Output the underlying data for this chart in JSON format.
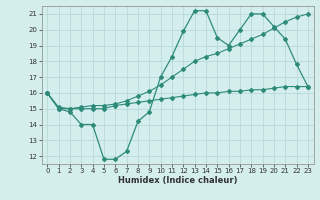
{
  "xlabel": "Humidex (Indice chaleur)",
  "ylabel": "",
  "bg_color": "#d4eeee",
  "line_color": "#2e8b7a",
  "grid_color": "#b8d8d8",
  "xlim": [
    -0.5,
    23.5
  ],
  "ylim": [
    11.5,
    21.5
  ],
  "xticks": [
    0,
    1,
    2,
    3,
    4,
    5,
    6,
    7,
    8,
    9,
    10,
    11,
    12,
    13,
    14,
    15,
    16,
    17,
    18,
    19,
    20,
    21,
    22,
    23
  ],
  "yticks": [
    12,
    13,
    14,
    15,
    16,
    17,
    18,
    19,
    20,
    21
  ],
  "line1_x": [
    0,
    1,
    2,
    3,
    4,
    5,
    6,
    7,
    8,
    9,
    10,
    11,
    12,
    13,
    14,
    15,
    16,
    17,
    18,
    19,
    20,
    21,
    22,
    23
  ],
  "line1_y": [
    16.0,
    15.0,
    14.8,
    14.0,
    14.0,
    11.8,
    11.8,
    12.3,
    14.2,
    14.8,
    17.0,
    18.3,
    19.9,
    21.2,
    21.2,
    19.5,
    19.0,
    20.0,
    21.0,
    21.0,
    20.2,
    19.4,
    17.8,
    16.4
  ],
  "line2_x": [
    0,
    1,
    2,
    3,
    4,
    5,
    6,
    7,
    8,
    9,
    10,
    11,
    12,
    13,
    14,
    15,
    16,
    17,
    18,
    19,
    20,
    21,
    22,
    23
  ],
  "line2_y": [
    16.0,
    15.0,
    15.0,
    15.0,
    15.0,
    15.0,
    15.2,
    15.3,
    15.4,
    15.5,
    15.6,
    15.7,
    15.8,
    15.9,
    16.0,
    16.0,
    16.1,
    16.1,
    16.2,
    16.2,
    16.3,
    16.4,
    16.4,
    16.4
  ],
  "line3_x": [
    0,
    1,
    2,
    3,
    4,
    5,
    6,
    7,
    8,
    9,
    10,
    11,
    12,
    13,
    14,
    15,
    16,
    17,
    18,
    19,
    20,
    21,
    22,
    23
  ],
  "line3_y": [
    16.0,
    15.1,
    15.0,
    15.1,
    15.2,
    15.2,
    15.3,
    15.5,
    15.8,
    16.1,
    16.5,
    17.0,
    17.5,
    18.0,
    18.3,
    18.5,
    18.8,
    19.1,
    19.4,
    19.7,
    20.1,
    20.5,
    20.8,
    21.0
  ]
}
